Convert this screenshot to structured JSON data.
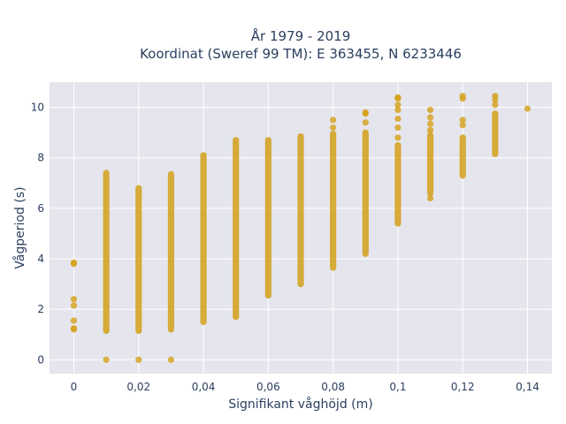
{
  "chart_data": {
    "type": "scatter",
    "title_lines": [
      "År 1979 - 2019",
      "Koordinat (Sweref 99 TM): E 363455, N 6233446"
    ],
    "xlabel": "Signifikant våghöjd (m)",
    "ylabel": "Vågperiod (s)",
    "xlim": [
      -0.0075,
      0.1475
    ],
    "ylim": [
      -0.55,
      11.0
    ],
    "x_ticks": [
      {
        "value": 0,
        "label": "0"
      },
      {
        "value": 0.02,
        "label": "0,02"
      },
      {
        "value": 0.04,
        "label": "0,04"
      },
      {
        "value": 0.06,
        "label": "0,06"
      },
      {
        "value": 0.08,
        "label": "0,08"
      },
      {
        "value": 0.1,
        "label": "0,1"
      },
      {
        "value": 0.12,
        "label": "0,12"
      },
      {
        "value": 0.14,
        "label": "0,14"
      }
    ],
    "y_ticks": [
      {
        "value": 0,
        "label": "0"
      },
      {
        "value": 2,
        "label": "2"
      },
      {
        "value": 4,
        "label": "4"
      },
      {
        "value": 6,
        "label": "6"
      },
      {
        "value": 8,
        "label": "8"
      },
      {
        "value": 10,
        "label": "10"
      }
    ],
    "grid": true,
    "marker_color": "#d4a017",
    "background_color": "#e5e5ee",
    "columns": [
      {
        "x": 0,
        "range": null,
        "points": [
          1.2,
          1.25,
          1.55,
          2.15,
          2.4,
          3.8,
          3.85
        ]
      },
      {
        "x": 0.01,
        "range": [
          1.15,
          7.4
        ],
        "points": [
          0.0
        ]
      },
      {
        "x": 0.02,
        "range": [
          1.15,
          6.8
        ],
        "points": [
          0.0
        ]
      },
      {
        "x": 0.03,
        "range": [
          1.2,
          7.35
        ],
        "points": [
          0.0
        ]
      },
      {
        "x": 0.04,
        "range": [
          1.5,
          8.1
        ],
        "points": []
      },
      {
        "x": 0.05,
        "range": [
          1.7,
          8.7
        ],
        "points": []
      },
      {
        "x": 0.06,
        "range": [
          2.55,
          8.7
        ],
        "points": []
      },
      {
        "x": 0.07,
        "range": [
          3.0,
          8.85
        ],
        "points": []
      },
      {
        "x": 0.08,
        "range": [
          3.65,
          8.95
        ],
        "points": [
          9.2,
          9.5
        ]
      },
      {
        "x": 0.09,
        "range": [
          4.2,
          9.0
        ],
        "points": [
          9.4,
          9.75,
          9.8
        ]
      },
      {
        "x": 0.1,
        "range": [
          5.4,
          8.5
        ],
        "points": [
          8.8,
          9.2,
          9.55,
          9.9,
          10.1,
          10.35,
          10.4
        ]
      },
      {
        "x": 0.11,
        "range": [
          6.6,
          8.9
        ],
        "points": [
          6.4,
          9.1,
          9.35,
          9.6,
          9.9
        ]
      },
      {
        "x": 0.12,
        "range": [
          7.3,
          8.8
        ],
        "points": [
          9.3,
          9.5,
          10.35,
          10.45
        ]
      },
      {
        "x": 0.13,
        "range": [
          8.15,
          9.75
        ],
        "points": [
          10.1,
          10.3,
          10.45
        ]
      },
      {
        "x": 0.14,
        "range": null,
        "points": [
          9.95
        ]
      }
    ]
  }
}
